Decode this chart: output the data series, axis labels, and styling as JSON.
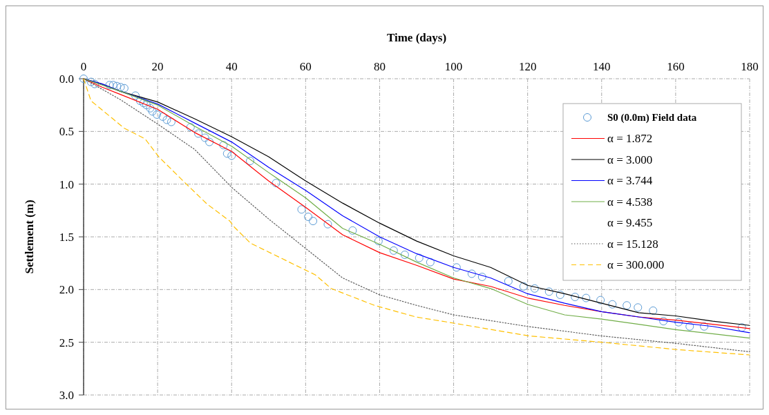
{
  "chart_data": {
    "type": "line",
    "xlabel": "Time (days)",
    "ylabel": "Settlement (m)",
    "xlim": [
      0,
      180
    ],
    "xticks": [
      0,
      20,
      40,
      60,
      80,
      100,
      120,
      140,
      160,
      180
    ],
    "ylim": [
      3,
      0
    ],
    "yticks": [
      {
        "value": 0,
        "label": "0.0"
      },
      0.5,
      {
        "value": 1,
        "label": "1.0"
      },
      1.5,
      {
        "value": 2,
        "label": "2.0"
      },
      2.5,
      {
        "value": 3,
        "label": "3.0"
      }
    ],
    "grid": true,
    "legend": "top right",
    "series": [
      {
        "name": "S0 (0.0m) Field data",
        "type": "scatter",
        "marker": "circle",
        "color": "#5b9bd5",
        "x": [
          0,
          2,
          3,
          7,
          8,
          9,
          10,
          11,
          14,
          15.3,
          16.2,
          17,
          18,
          18.6,
          19.8,
          21.4,
          22.5,
          23.7,
          28.9,
          31,
          32.8,
          34,
          37.8,
          38.8,
          40,
          45,
          52,
          58.9,
          60.7,
          62,
          66,
          72.7,
          79.7,
          83.8,
          86.8,
          90.7,
          93.7,
          100.8,
          104.9,
          107.7,
          114.8,
          118.9,
          121.9,
          125.8,
          128.8,
          132.8,
          135.8,
          139.7,
          142.9,
          146.8,
          149.8,
          153.9,
          156.7,
          160.8,
          163.8,
          167.7,
          177.9
        ],
        "values": [
          0,
          0.03,
          0.05,
          0.06,
          0.06,
          0.07,
          0.08,
          0.09,
          0.16,
          0.21,
          0.23,
          0.25,
          0.28,
          0.31,
          0.34,
          0.36,
          0.39,
          0.41,
          0.46,
          0.52,
          0.56,
          0.6,
          0.63,
          0.71,
          0.73,
          0.78,
          0.99,
          1.24,
          1.31,
          1.35,
          1.38,
          1.44,
          1.54,
          1.63,
          1.67,
          1.7,
          1.74,
          1.79,
          1.85,
          1.88,
          1.92,
          1.97,
          1.99,
          2.02,
          2.05,
          2.07,
          2.08,
          2.1,
          2.14,
          2.15,
          2.17,
          2.2,
          2.3,
          2.31,
          2.35,
          2.35,
          2.36
        ]
      },
      {
        "name": "α = 1.872",
        "color": "#ff0000",
        "line_style": "solid",
        "x": [
          0,
          5,
          10,
          20,
          30,
          40,
          50,
          60,
          70,
          80,
          90,
          100,
          110,
          120,
          130,
          140,
          150,
          160,
          170,
          180
        ],
        "values": [
          0,
          0.08,
          0.15,
          0.29,
          0.51,
          0.69,
          0.97,
          1.22,
          1.48,
          1.65,
          1.77,
          1.9,
          1.97,
          2.08,
          2.15,
          2.21,
          2.26,
          2.29,
          2.33,
          2.37
        ]
      },
      {
        "name": "α = 3.000",
        "color": "#000000",
        "line_style": "solid",
        "x": [
          0,
          5,
          10,
          20,
          30,
          40,
          50,
          60,
          70,
          80,
          90,
          100,
          110,
          120,
          130,
          140,
          150,
          160,
          170,
          180
        ],
        "values": [
          0,
          0.05,
          0.12,
          0.22,
          0.38,
          0.55,
          0.74,
          0.97,
          1.18,
          1.37,
          1.54,
          1.68,
          1.79,
          1.96,
          2.04,
          2.13,
          2.22,
          2.25,
          2.3,
          2.34
        ]
      },
      {
        "name": "α = 3.744",
        "color": "#0000ff",
        "line_style": "solid",
        "x": [
          0,
          5,
          10,
          20,
          30,
          40,
          50,
          60,
          70,
          80,
          90,
          100,
          110,
          120,
          130,
          140,
          150,
          160,
          170,
          180
        ],
        "values": [
          0,
          0.05,
          0.12,
          0.24,
          0.42,
          0.6,
          0.84,
          1.06,
          1.3,
          1.5,
          1.66,
          1.79,
          1.89,
          2.04,
          2.13,
          2.21,
          2.26,
          2.31,
          2.35,
          2.41
        ]
      },
      {
        "name": "α = 4.538",
        "color": "#70ad47",
        "line_style": "solid",
        "x": [
          0,
          5,
          10,
          20,
          30,
          40,
          50,
          60,
          70,
          80,
          90,
          100,
          110,
          120,
          130,
          140,
          150,
          160,
          170,
          180
        ],
        "values": [
          0,
          0.06,
          0.12,
          0.25,
          0.45,
          0.64,
          0.89,
          1.13,
          1.42,
          1.57,
          1.74,
          1.89,
          1.99,
          2.14,
          2.24,
          2.28,
          2.33,
          2.38,
          2.42,
          2.46
        ]
      },
      {
        "name": "α = 9.455"
      },
      {
        "name": "α = 15.128",
        "color": "#595959",
        "line_style": "dotted",
        "x": [
          0,
          10,
          20,
          30,
          40,
          50,
          60,
          70,
          80,
          90,
          100,
          120,
          140,
          160,
          180
        ],
        "values": [
          0,
          0.2,
          0.43,
          0.67,
          1.03,
          1.33,
          1.61,
          1.89,
          2.05,
          2.15,
          2.24,
          2.35,
          2.44,
          2.51,
          2.59
        ]
      },
      {
        "name": "α = 300.000",
        "color": "#ffc000",
        "line_style": "dashed",
        "x": [
          0,
          2,
          4.1,
          11,
          16.6,
          20.3,
          27.2,
          33.4,
          39.5,
          40.8,
          45.1,
          62.6,
          66.9,
          78.6,
          89.8,
          98.6,
          120.4,
          140.1,
          160.6,
          180
        ],
        "values": [
          0,
          0.21,
          0.27,
          0.47,
          0.57,
          0.74,
          0.98,
          1.19,
          1.35,
          1.41,
          1.56,
          1.86,
          1.99,
          2.15,
          2.26,
          2.31,
          2.44,
          2.5,
          2.57,
          2.62
        ]
      }
    ]
  }
}
